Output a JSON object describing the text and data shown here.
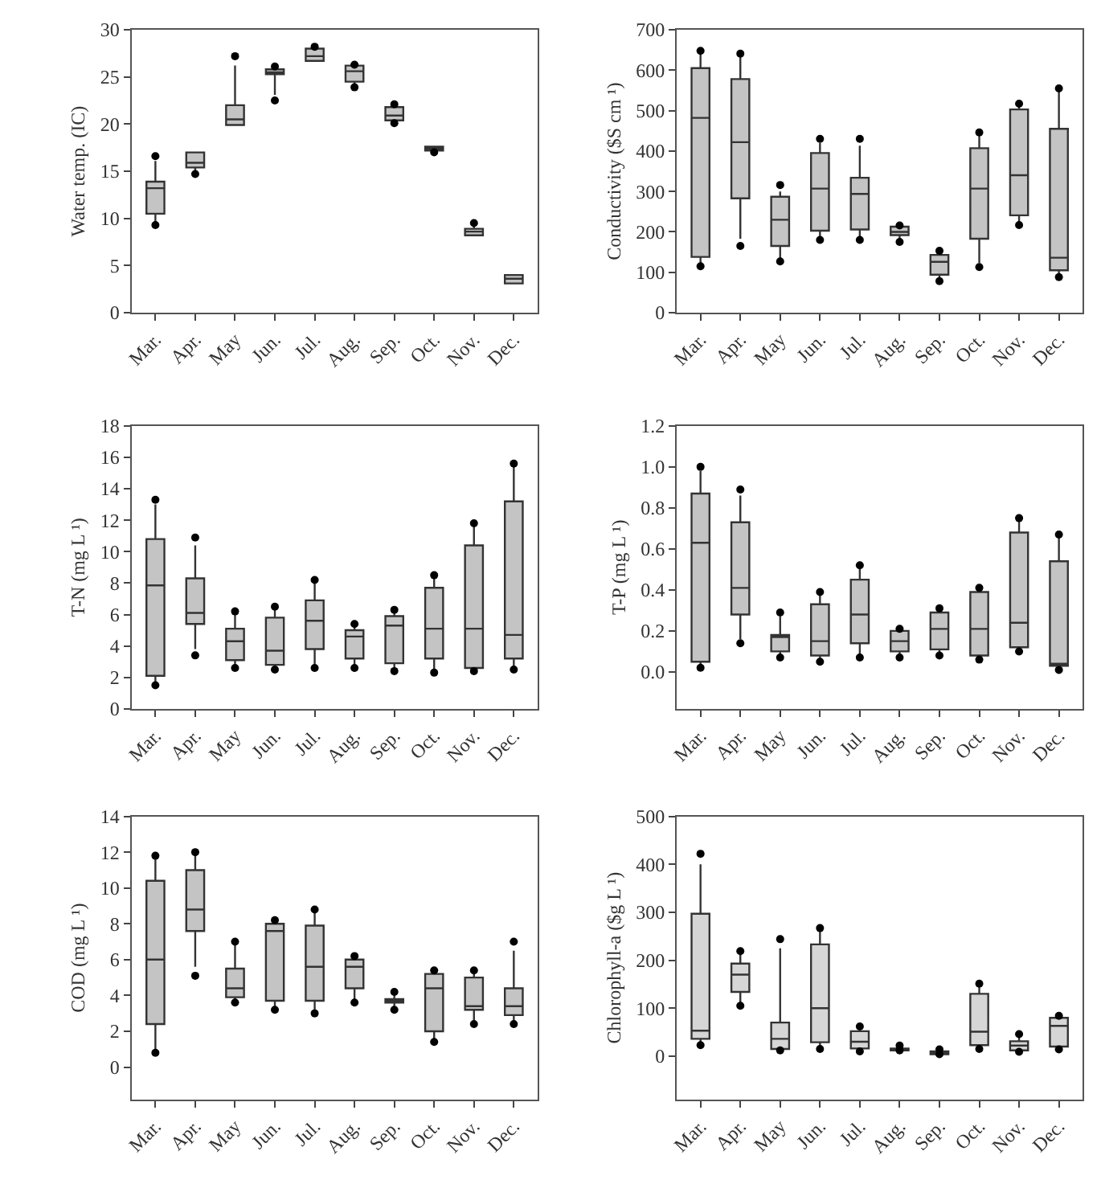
{
  "chart_data": [
    {
      "type": "box",
      "ylabel": "Water temp. (IC)",
      "categories": [
        "Mar.",
        "Apr.",
        "May",
        "Jun.",
        "Jul.",
        "Aug.",
        "Sep.",
        "Oct.",
        "Nov.",
        "Dec."
      ],
      "color": "#c4c4c4",
      "ylim": [
        0,
        30
      ],
      "yticks": [
        0,
        5,
        10,
        15,
        20,
        25,
        30
      ],
      "boxes": [
        {
          "low": 9.5,
          "q1": 10.5,
          "median": 13.2,
          "q3": 13.9,
          "high": 16.1,
          "outliers": [
            16.6,
            9.3
          ]
        },
        {
          "low": 14.8,
          "q1": 15.4,
          "median": 15.9,
          "q3": 17.0,
          "high": 17.0,
          "outliers": [
            14.7
          ]
        },
        {
          "low": 19.9,
          "q1": 19.9,
          "median": 20.5,
          "q3": 22.0,
          "high": 26.2,
          "outliers": [
            27.2
          ]
        },
        {
          "low": 23.1,
          "q1": 25.3,
          "median": 25.5,
          "q3": 25.8,
          "high": 25.9,
          "outliers": [
            26.1,
            22.5
          ]
        },
        {
          "low": 26.7,
          "q1": 26.7,
          "median": 27.2,
          "q3": 28.0,
          "high": 28.1,
          "outliers": [
            28.2
          ]
        },
        {
          "low": 24.0,
          "q1": 24.5,
          "median": 25.6,
          "q3": 26.2,
          "high": 26.3,
          "outliers": [
            26.3,
            23.9
          ]
        },
        {
          "low": 20.2,
          "q1": 20.4,
          "median": 20.9,
          "q3": 21.8,
          "high": 22.0,
          "outliers": [
            22.1,
            20.1
          ]
        },
        {
          "low": 17.1,
          "q1": 17.2,
          "median": 17.4,
          "q3": 17.6,
          "high": 17.6,
          "outliers": [
            17.0
          ]
        },
        {
          "low": 8.2,
          "q1": 8.2,
          "median": 8.6,
          "q3": 8.9,
          "high": 9.3,
          "outliers": [
            9.5
          ]
        },
        {
          "low": 3.1,
          "q1": 3.1,
          "median": 3.6,
          "q3": 4.0,
          "high": 4.0
        }
      ]
    },
    {
      "type": "box",
      "ylabel": "Conductivity ($S cm ¹)",
      "categories": [
        "Mar.",
        "Apr.",
        "May",
        "Jun.",
        "Jul.",
        "Aug.",
        "Sep.",
        "Oct.",
        "Nov.",
        "Dec."
      ],
      "color": "#c4c4c4",
      "ylim": [
        0,
        700
      ],
      "yticks": [
        0,
        100,
        200,
        300,
        400,
        500,
        600,
        700
      ],
      "boxes": [
        {
          "low": 118,
          "q1": 138,
          "median": 482,
          "q3": 605,
          "high": 640,
          "outliers": [
            648,
            115
          ]
        },
        {
          "low": 183,
          "q1": 283,
          "median": 422,
          "q3": 578,
          "high": 637,
          "outliers": [
            641,
            165
          ]
        },
        {
          "low": 132,
          "q1": 165,
          "median": 230,
          "q3": 287,
          "high": 300,
          "outliers": [
            316,
            127
          ]
        },
        {
          "low": 180,
          "q1": 203,
          "median": 307,
          "q3": 395,
          "high": 420,
          "outliers": [
            430,
            180
          ]
        },
        {
          "low": 180,
          "q1": 206,
          "median": 294,
          "q3": 334,
          "high": 413,
          "outliers": [
            430,
            180
          ]
        },
        {
          "low": 177,
          "q1": 192,
          "median": 200,
          "q3": 213,
          "high": 218,
          "outliers": [
            216,
            175
          ]
        },
        {
          "low": 80,
          "q1": 94,
          "median": 126,
          "q3": 143,
          "high": 152,
          "outliers": [
            153,
            78
          ]
        },
        {
          "low": 123,
          "q1": 183,
          "median": 307,
          "q3": 407,
          "high": 445,
          "outliers": [
            446,
            113
          ]
        },
        {
          "low": 220,
          "q1": 241,
          "median": 340,
          "q3": 503,
          "high": 510,
          "outliers": [
            517,
            217
          ]
        },
        {
          "low": 92,
          "q1": 105,
          "median": 136,
          "q3": 455,
          "high": 553,
          "outliers": [
            555,
            88
          ]
        }
      ]
    },
    {
      "type": "box",
      "ylabel": "T-N (mg L ¹)",
      "categories": [
        "Mar.",
        "Apr.",
        "May",
        "Jun.",
        "Jul.",
        "Aug.",
        "Sep.",
        "Oct.",
        "Nov.",
        "Dec."
      ],
      "color": "#c4c4c4",
      "ylim": [
        0,
        18
      ],
      "yticks": [
        0,
        2,
        4,
        6,
        8,
        10,
        12,
        14,
        16,
        18
      ],
      "boxes": [
        {
          "low": 1.6,
          "q1": 2.1,
          "median": 7.85,
          "q3": 10.8,
          "high": 13.0,
          "outliers": [
            13.3,
            1.5
          ]
        },
        {
          "low": 3.8,
          "q1": 5.4,
          "median": 6.1,
          "q3": 8.3,
          "high": 10.4,
          "outliers": [
            10.9,
            3.4
          ]
        },
        {
          "low": 2.6,
          "q1": 3.1,
          "median": 4.3,
          "q3": 5.1,
          "high": 6.0,
          "outliers": [
            6.2,
            2.6
          ]
        },
        {
          "low": 2.6,
          "q1": 2.8,
          "median": 3.7,
          "q3": 5.8,
          "high": 6.4,
          "outliers": [
            6.5,
            2.5
          ]
        },
        {
          "low": 2.8,
          "q1": 3.8,
          "median": 5.6,
          "q3": 6.9,
          "high": 8.0,
          "outliers": [
            8.2,
            2.6
          ]
        },
        {
          "low": 2.6,
          "q1": 3.2,
          "median": 4.6,
          "q3": 5.0,
          "high": 5.3,
          "outliers": [
            5.4,
            2.6
          ]
        },
        {
          "low": 2.5,
          "q1": 2.9,
          "median": 5.3,
          "q3": 5.9,
          "high": 6.2,
          "outliers": [
            6.3,
            2.4
          ]
        },
        {
          "low": 2.4,
          "q1": 3.2,
          "median": 5.1,
          "q3": 7.7,
          "high": 8.4,
          "outliers": [
            8.5,
            2.3
          ]
        },
        {
          "low": 2.4,
          "q1": 2.6,
          "median": 5.1,
          "q3": 10.4,
          "high": 11.8,
          "outliers": [
            11.8,
            2.4
          ]
        },
        {
          "low": 2.6,
          "q1": 3.2,
          "median": 4.7,
          "q3": 13.2,
          "high": 15.5,
          "outliers": [
            15.6,
            2.5
          ]
        }
      ]
    },
    {
      "type": "box",
      "ylabel": "T-P (mg L ¹)",
      "categories": [
        "Mar.",
        "Apr.",
        "May",
        "Jun.",
        "Jul.",
        "Aug.",
        "Sep.",
        "Oct.",
        "Nov.",
        "Dec."
      ],
      "color": "#c4c4c4",
      "ylim": [
        -0.18,
        1.2
      ],
      "yticks": [
        {
          "value": 0,
          "label": "0.0"
        },
        0.2,
        0.4,
        0.6,
        0.8,
        {
          "value": 1,
          "label": "1.0"
        },
        1.2
      ],
      "boxes": [
        {
          "low": 0.03,
          "q1": 0.05,
          "median": 0.63,
          "q3": 0.87,
          "high": 0.98,
          "outliers": [
            1.0,
            0.02
          ]
        },
        {
          "low": 0.16,
          "q1": 0.28,
          "median": 0.41,
          "q3": 0.73,
          "high": 0.86,
          "outliers": [
            0.89,
            0.14
          ]
        },
        {
          "low": 0.08,
          "q1": 0.1,
          "median": 0.17,
          "q3": 0.18,
          "high": 0.27,
          "outliers": [
            0.29,
            0.07
          ]
        },
        {
          "low": 0.06,
          "q1": 0.08,
          "median": 0.15,
          "q3": 0.33,
          "high": 0.39,
          "outliers": [
            0.39,
            0.05
          ]
        },
        {
          "low": 0.07,
          "q1": 0.14,
          "median": 0.28,
          "q3": 0.45,
          "high": 0.52,
          "outliers": [
            0.52,
            0.07
          ]
        },
        {
          "low": 0.07,
          "q1": 0.1,
          "median": 0.15,
          "q3": 0.2,
          "high": 0.21,
          "outliers": [
            0.21,
            0.07
          ]
        },
        {
          "low": 0.08,
          "q1": 0.11,
          "median": 0.21,
          "q3": 0.29,
          "high": 0.31,
          "outliers": [
            0.31,
            0.08
          ]
        },
        {
          "low": 0.06,
          "q1": 0.08,
          "median": 0.21,
          "q3": 0.39,
          "high": 0.41,
          "outliers": [
            0.41,
            0.06
          ]
        },
        {
          "low": 0.1,
          "q1": 0.12,
          "median": 0.24,
          "q3": 0.68,
          "high": 0.74,
          "outliers": [
            0.75,
            0.1
          ]
        },
        {
          "low": 0.01,
          "q1": 0.03,
          "median": 0.04,
          "q3": 0.54,
          "high": 0.67,
          "outliers": [
            0.67,
            0.01
          ]
        }
      ]
    },
    {
      "type": "box",
      "ylabel": "COD (mg L ¹)",
      "categories": [
        "Mar.",
        "Apr.",
        "May",
        "Jun.",
        "Jul.",
        "Aug.",
        "Sep.",
        "Oct.",
        "Nov.",
        "Dec."
      ],
      "color": "#c4c4c4",
      "ylim": [
        -1.8,
        14
      ],
      "yticks": [
        0,
        2,
        4,
        6,
        8,
        10,
        12,
        14
      ],
      "boxes": [
        {
          "low": 1.0,
          "q1": 2.4,
          "median": 6.0,
          "q3": 10.4,
          "high": 11.6,
          "outliers": [
            11.8,
            0.8
          ]
        },
        {
          "low": 5.6,
          "q1": 7.6,
          "median": 8.8,
          "q3": 11.0,
          "high": 11.9,
          "outliers": [
            12.0,
            5.1
          ]
        },
        {
          "low": 3.7,
          "q1": 3.9,
          "median": 4.4,
          "q3": 5.5,
          "high": 6.8,
          "outliers": [
            7.0,
            3.6
          ]
        },
        {
          "low": 3.2,
          "q1": 3.7,
          "median": 7.6,
          "q3": 8.0,
          "high": 8.1,
          "outliers": [
            8.2,
            3.2
          ]
        },
        {
          "low": 3.0,
          "q1": 3.7,
          "median": 5.6,
          "q3": 7.9,
          "high": 8.7,
          "outliers": [
            8.8,
            3.0
          ]
        },
        {
          "low": 3.7,
          "q1": 4.4,
          "median": 5.6,
          "q3": 6.0,
          "high": 6.1,
          "outliers": [
            6.2,
            3.6
          ]
        },
        {
          "low": 3.3,
          "q1": 3.6,
          "median": 3.7,
          "q3": 3.8,
          "high": 4.1,
          "outliers": [
            4.2,
            3.2
          ]
        },
        {
          "low": 1.5,
          "q1": 2.0,
          "median": 4.4,
          "q3": 5.2,
          "high": 5.3,
          "outliers": [
            5.4,
            1.4
          ]
        },
        {
          "low": 2.6,
          "q1": 3.2,
          "median": 3.4,
          "q3": 5.0,
          "high": 5.3,
          "outliers": [
            5.4,
            2.4
          ]
        },
        {
          "low": 2.5,
          "q1": 2.9,
          "median": 3.4,
          "q3": 4.4,
          "high": 6.5,
          "outliers": [
            7.0,
            2.4
          ]
        }
      ]
    },
    {
      "type": "box",
      "ylabel": "Chlorophyll-a ($g L ¹)",
      "categories": [
        "Mar.",
        "Apr.",
        "May",
        "Jun.",
        "Jul.",
        "Aug.",
        "Sep.",
        "Oct.",
        "Nov.",
        "Dec."
      ],
      "color": "#d6d6d6",
      "ylim": [
        -90,
        500
      ],
      "yticks": [
        0,
        100,
        200,
        300,
        400,
        500
      ],
      "boxes": [
        {
          "low": 30,
          "q1": 36,
          "median": 53,
          "q3": 297,
          "high": 400,
          "outliers": [
            422,
            23
          ]
        },
        {
          "low": 110,
          "q1": 134,
          "median": 170,
          "q3": 193,
          "high": 215,
          "outliers": [
            219,
            105
          ]
        },
        {
          "low": 13,
          "q1": 15,
          "median": 36,
          "q3": 70,
          "high": 225,
          "outliers": [
            244,
            12
          ]
        },
        {
          "low": 17,
          "q1": 29,
          "median": 100,
          "q3": 233,
          "high": 265,
          "outliers": [
            267,
            15
          ]
        },
        {
          "low": 12,
          "q1": 16,
          "median": 30,
          "q3": 52,
          "high": 57,
          "outliers": [
            62,
            10
          ]
        },
        {
          "low": 12,
          "q1": 12,
          "median": 14,
          "q3": 16,
          "high": 20,
          "outliers": [
            22,
            12
          ]
        },
        {
          "low": 3,
          "q1": 4,
          "median": 8,
          "q3": 10,
          "high": 12,
          "outliers": [
            14,
            4
          ]
        },
        {
          "low": 17,
          "q1": 23,
          "median": 51,
          "q3": 130,
          "high": 150,
          "outliers": [
            151,
            15
          ]
        },
        {
          "low": 10,
          "q1": 12,
          "median": 22,
          "q3": 31,
          "high": 40,
          "outliers": [
            46,
            9
          ]
        },
        {
          "low": 15,
          "q1": 20,
          "median": 63,
          "q3": 80,
          "high": 82,
          "outliers": [
            84,
            14
          ]
        }
      ]
    }
  ]
}
